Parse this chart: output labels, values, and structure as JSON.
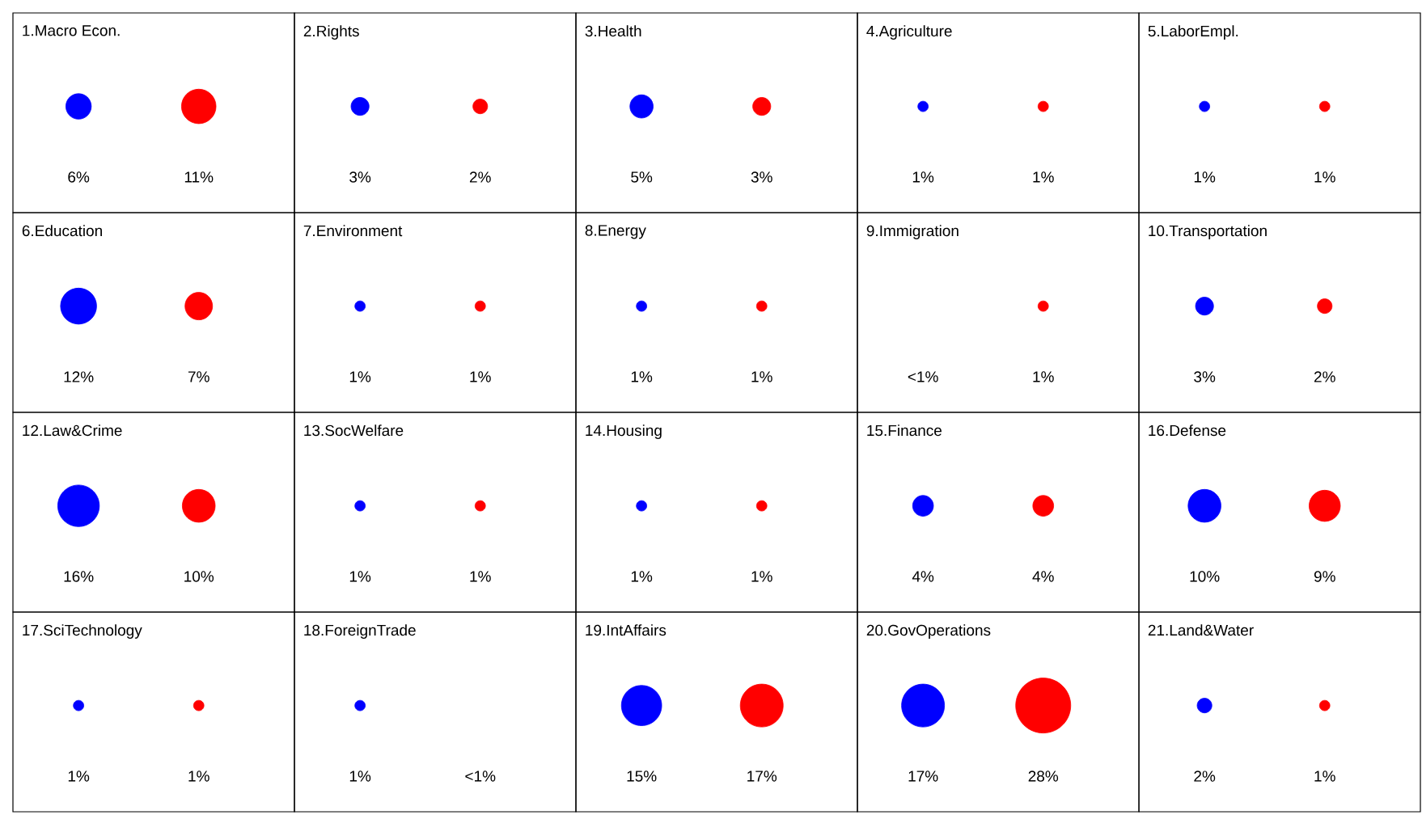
{
  "chart_data": [
    {
      "type": "other",
      "title": "1.Macro Econ.",
      "categories": [
        null,
        null
      ],
      "values": [
        6,
        11
      ],
      "value_labels": [
        "6%",
        "11%"
      ],
      "colors": [
        "#0000ff",
        "#ff0000"
      ]
    },
    {
      "type": "other",
      "title": "2.Rights",
      "categories": [
        null,
        null
      ],
      "values": [
        3,
        2
      ],
      "value_labels": [
        "3%",
        "2%"
      ],
      "colors": [
        "#0000ff",
        "#ff0000"
      ]
    },
    {
      "type": "other",
      "title": "3.Health",
      "categories": [
        null,
        null
      ],
      "values": [
        5,
        3
      ],
      "value_labels": [
        "5%",
        "3%"
      ],
      "colors": [
        "#0000ff",
        "#ff0000"
      ]
    },
    {
      "type": "other",
      "title": "4.Agriculture",
      "categories": [
        null,
        null
      ],
      "values": [
        1,
        1
      ],
      "value_labels": [
        "1%",
        "1%"
      ],
      "colors": [
        "#0000ff",
        "#ff0000"
      ]
    },
    {
      "type": "other",
      "title": "5.LaborEmpl.",
      "categories": [
        null,
        null
      ],
      "values": [
        1,
        1
      ],
      "value_labels": [
        "1%",
        "1%"
      ],
      "colors": [
        "#0000ff",
        "#ff0000"
      ]
    },
    {
      "type": "other",
      "title": "6.Education",
      "categories": [
        null,
        null
      ],
      "values": [
        12,
        7
      ],
      "value_labels": [
        "12%",
        "7%"
      ],
      "colors": [
        "#0000ff",
        "#ff0000"
      ]
    },
    {
      "type": "other",
      "title": "7.Environment",
      "categories": [
        null,
        null
      ],
      "values": [
        1,
        1
      ],
      "value_labels": [
        "1%",
        "1%"
      ],
      "colors": [
        "#0000ff",
        "#ff0000"
      ]
    },
    {
      "type": "other",
      "title": "8.Energy",
      "categories": [
        null,
        null
      ],
      "values": [
        1,
        1
      ],
      "value_labels": [
        "1%",
        "1%"
      ],
      "colors": [
        "#0000ff",
        "#ff0000"
      ]
    },
    {
      "type": "other",
      "title": "9.Immigration",
      "categories": [
        null,
        null
      ],
      "values": [
        null,
        1
      ],
      "value_labels": [
        "<1%",
        "1%"
      ],
      "colors": [
        "#0000ff",
        "#ff0000"
      ]
    },
    {
      "type": "other",
      "title": "10.Transportation",
      "categories": [
        null,
        null
      ],
      "values": [
        3,
        2
      ],
      "value_labels": [
        "3%",
        "2%"
      ],
      "colors": [
        "#0000ff",
        "#ff0000"
      ]
    },
    {
      "type": "other",
      "title": "12.Law&Crime",
      "categories": [
        null,
        null
      ],
      "values": [
        16,
        10
      ],
      "value_labels": [
        "16%",
        "10%"
      ],
      "colors": [
        "#0000ff",
        "#ff0000"
      ]
    },
    {
      "type": "other",
      "title": "13.SocWelfare",
      "categories": [
        null,
        null
      ],
      "values": [
        1,
        1
      ],
      "value_labels": [
        "1%",
        "1%"
      ],
      "colors": [
        "#0000ff",
        "#ff0000"
      ]
    },
    {
      "type": "other",
      "title": "14.Housing",
      "categories": [
        null,
        null
      ],
      "values": [
        1,
        1
      ],
      "value_labels": [
        "1%",
        "1%"
      ],
      "colors": [
        "#0000ff",
        "#ff0000"
      ]
    },
    {
      "type": "other",
      "title": "15.Finance",
      "categories": [
        null,
        null
      ],
      "values": [
        4,
        4
      ],
      "value_labels": [
        "4%",
        "4%"
      ],
      "colors": [
        "#0000ff",
        "#ff0000"
      ]
    },
    {
      "type": "other",
      "title": "16.Defense",
      "categories": [
        null,
        null
      ],
      "values": [
        10,
        9
      ],
      "value_labels": [
        "10%",
        "9%"
      ],
      "colors": [
        "#0000ff",
        "#ff0000"
      ]
    },
    {
      "type": "other",
      "title": "17.SciTechnology",
      "categories": [
        null,
        null
      ],
      "values": [
        1,
        1
      ],
      "value_labels": [
        "1%",
        "1%"
      ],
      "colors": [
        "#0000ff",
        "#ff0000"
      ]
    },
    {
      "type": "other",
      "title": "18.ForeignTrade",
      "categories": [
        null,
        null
      ],
      "values": [
        1,
        null
      ],
      "value_labels": [
        "1%",
        "<1%"
      ],
      "colors": [
        "#0000ff",
        "#ff0000"
      ]
    },
    {
      "type": "other",
      "title": "19.IntAffairs",
      "categories": [
        null,
        null
      ],
      "values": [
        15,
        17
      ],
      "value_labels": [
        "15%",
        "17%"
      ],
      "colors": [
        "#0000ff",
        "#ff0000"
      ]
    },
    {
      "type": "other",
      "title": "20.GovOperations",
      "categories": [
        null,
        null
      ],
      "values": [
        17,
        28
      ],
      "value_labels": [
        "17%",
        "28%"
      ],
      "colors": [
        "#0000ff",
        "#ff0000"
      ]
    },
    {
      "type": "other",
      "title": "21.Land&Water",
      "categories": [
        null,
        null
      ],
      "values": [
        2,
        1
      ],
      "value_labels": [
        "2%",
        "1%"
      ],
      "colors": [
        "#0000ff",
        "#ff0000"
      ]
    }
  ]
}
